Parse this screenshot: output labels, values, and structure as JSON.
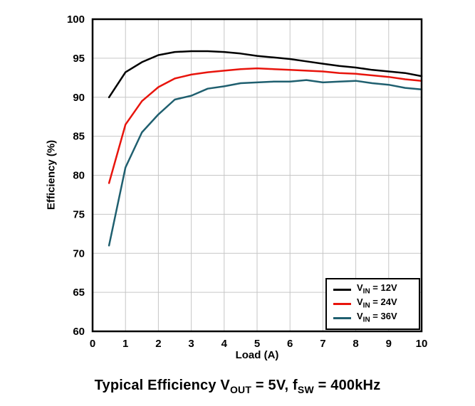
{
  "chart_data": {
    "type": "line",
    "title": "Typical Efficiency VOUT = 5V, fSW = 400kHz",
    "xlabel": "Load (A)",
    "ylabel": "Efficiency (%)",
    "xlim": [
      0,
      10
    ],
    "ylim": [
      60,
      100
    ],
    "xticks": [
      0,
      1,
      2,
      3,
      4,
      5,
      6,
      7,
      8,
      9,
      10
    ],
    "yticks": [
      60,
      65,
      70,
      75,
      80,
      85,
      90,
      95,
      100
    ],
    "grid": true,
    "legend_position": "lower right",
    "x": [
      0.5,
      1,
      1.5,
      2,
      2.5,
      3,
      3.5,
      4,
      4.5,
      5,
      5.5,
      6,
      6.5,
      7,
      7.5,
      8,
      8.5,
      9,
      9.5,
      10
    ],
    "series": [
      {
        "name": "VIN = 12V",
        "color": "#000000",
        "values": [
          90.0,
          93.2,
          94.5,
          95.4,
          95.8,
          95.9,
          95.9,
          95.8,
          95.6,
          95.3,
          95.1,
          94.9,
          94.6,
          94.3,
          94.0,
          93.8,
          93.5,
          93.3,
          93.1,
          92.7
        ]
      },
      {
        "name": "VIN = 24V",
        "color": "#e8140c",
        "values": [
          79.0,
          86.5,
          89.5,
          91.3,
          92.4,
          92.9,
          93.2,
          93.4,
          93.6,
          93.7,
          93.6,
          93.5,
          93.4,
          93.3,
          93.1,
          93.0,
          92.8,
          92.6,
          92.3,
          92.1
        ]
      },
      {
        "name": "VIN = 36V",
        "color": "#1f5f6f",
        "values": [
          71.0,
          81.0,
          85.5,
          87.8,
          89.7,
          90.2,
          91.1,
          91.4,
          91.8,
          91.9,
          92.0,
          92.0,
          92.2,
          91.9,
          92.0,
          92.1,
          91.8,
          91.6,
          91.2,
          91.0
        ]
      }
    ]
  },
  "legend": {
    "items": [
      {
        "pre": "V",
        "sub": "IN",
        "post": " = 12V",
        "color": "#000000"
      },
      {
        "pre": "V",
        "sub": "IN",
        "post": " = 24V",
        "color": "#e8140c"
      },
      {
        "pre": "V",
        "sub": "IN",
        "post": " = 36V",
        "color": "#1f5f6f"
      }
    ]
  },
  "title": {
    "part1": "Typical Efficiency V",
    "sub1": "OUT",
    "part2": " = 5V, f",
    "sub2": "SW",
    "part3": " = 400kHz"
  },
  "style": {
    "grid_color": "#c6c6c6",
    "frame_color": "#000000",
    "background": "#ffffff"
  }
}
